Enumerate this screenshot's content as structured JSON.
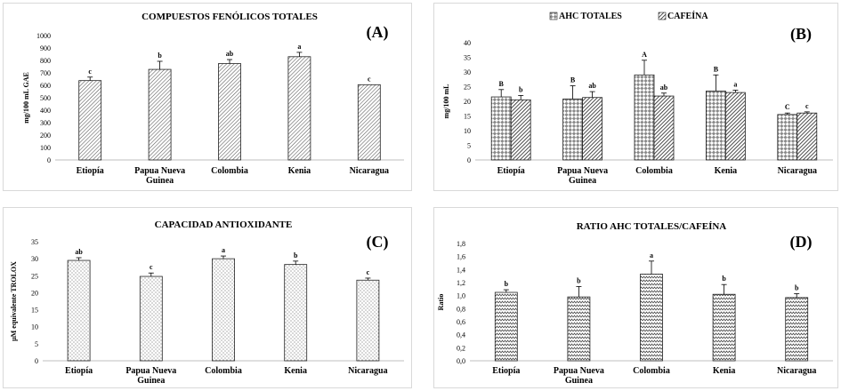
{
  "chart_data": [
    {
      "id": "A",
      "type": "bar",
      "title": "COMPUESTOS FENÓLICOS TOTALES",
      "panel_label": "(A)",
      "ylabel": "mg/100 mL GAE",
      "ylim": [
        0,
        1000
      ],
      "ystep": 100,
      "tick_decimals": 0,
      "categories": [
        "Etiopía",
        "Papua Nueva Guinea",
        "Colombia",
        "Kenia",
        "Nicaragua"
      ],
      "series": [
        {
          "values": [
            638,
            728,
            775,
            830,
            605
          ],
          "errors": [
            28,
            65,
            32,
            35,
            0
          ],
          "sig": [
            "c",
            "b",
            "ab",
            "a",
            "c"
          ],
          "pattern": "diag-dense"
        }
      ]
    },
    {
      "id": "B",
      "type": "bar",
      "title": "",
      "panel_label": "(B)",
      "ylabel": "mg/100 mL",
      "ylim": [
        0,
        40
      ],
      "ystep": 5,
      "tick_decimals": 0,
      "categories": [
        "Etiopía",
        "Papua Nueva Guinea",
        "Colombia",
        "Kenia",
        "Nicaragua"
      ],
      "legend_position": "top-center",
      "series": [
        {
          "name": "AHC TOTALES",
          "values": [
            21.5,
            20.8,
            29.0,
            23.5,
            15.5
          ],
          "errors": [
            2.5,
            4.5,
            5.0,
            5.5,
            0.5
          ],
          "sig": [
            "B",
            "B",
            "A",
            "B",
            "C"
          ],
          "pattern": "checker"
        },
        {
          "name": "CAFEÍNA",
          "values": [
            20.5,
            21.3,
            21.8,
            23.0,
            16.0
          ],
          "errors": [
            1.5,
            2.0,
            1.0,
            0.8,
            0.4
          ],
          "sig": [
            "b",
            "ab",
            "ab",
            "a",
            "c"
          ],
          "pattern": "diag-dark"
        }
      ]
    },
    {
      "id": "C",
      "type": "bar",
      "title": "CAPACIDAD ANTIOXIDANTE",
      "panel_label": "(C)",
      "ylabel": "µM equivalente TROLOX",
      "ylim": [
        0,
        35
      ],
      "ystep": 5,
      "tick_decimals": 0,
      "categories": [
        "Etiopía",
        "Papua Nueva Guinea",
        "Colombia",
        "Kenia",
        "Nicaragua"
      ],
      "series": [
        {
          "values": [
            29.5,
            24.8,
            30.0,
            28.3,
            23.7
          ],
          "errors": [
            0.8,
            1.0,
            0.8,
            1.0,
            0.6
          ],
          "sig": [
            "ab",
            "c",
            "a",
            "b",
            "c"
          ],
          "pattern": "dots"
        }
      ]
    },
    {
      "id": "D",
      "type": "bar",
      "title": "RATIO AHC TOTALES/CAFEÍNA",
      "panel_label": "(D)",
      "ylabel": "Ratio",
      "ylim": [
        0,
        1.8
      ],
      "ystep": 0.2,
      "tick_decimals": 1,
      "decimal_comma": true,
      "categories": [
        "Etiopía",
        "Papua Nueva Guinea",
        "Colombia",
        "Kenia",
        "Nicaragua"
      ],
      "series": [
        {
          "values": [
            1.05,
            0.98,
            1.33,
            1.02,
            0.97
          ],
          "errors": [
            0.04,
            0.16,
            0.2,
            0.15,
            0.06
          ],
          "sig": [
            "b",
            "b",
            "a",
            "b",
            "b"
          ],
          "pattern": "zigzag"
        }
      ]
    }
  ]
}
